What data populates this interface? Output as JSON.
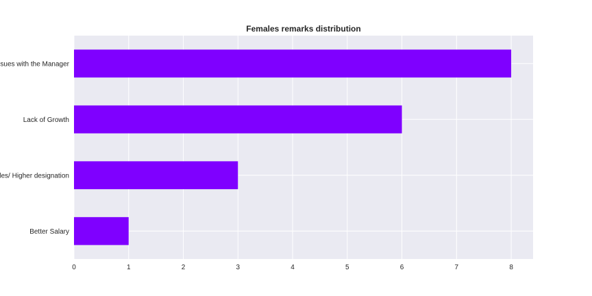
{
  "chart_data": {
    "type": "bar",
    "orientation": "horizontal",
    "title": "Females remarks distribution",
    "xlabel": "",
    "ylabel": "",
    "categories": [
      "Issues with the Manager",
      "Lack of Growth",
      "New Roles/ Higher designation",
      "Better Salary"
    ],
    "values": [
      8,
      6,
      3,
      1
    ],
    "xlim": [
      0,
      8.4
    ],
    "xticks": [
      0,
      1,
      2,
      3,
      4,
      5,
      6,
      7,
      8
    ],
    "grid": true,
    "legend": "none",
    "colors": {
      "bar": "#7f00ff",
      "plot_background": "#eaeaf2",
      "grid": "#ffffff",
      "text": "#262626"
    }
  }
}
